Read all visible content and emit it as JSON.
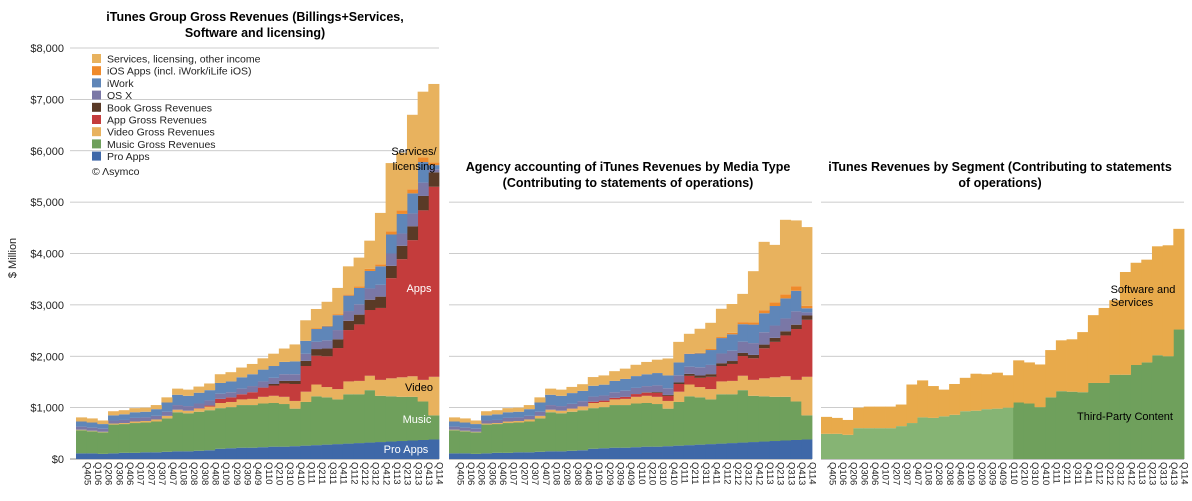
{
  "x_categories": [
    "Q405",
    "Q106",
    "Q206",
    "Q306",
    "Q406",
    "Q107",
    "Q207",
    "Q307",
    "Q407",
    "Q108",
    "Q208",
    "Q308",
    "Q408",
    "Q109",
    "Q209",
    "Q309",
    "Q409",
    "Q110",
    "Q210",
    "Q310",
    "Q410",
    "Q111",
    "Q211",
    "Q311",
    "Q411",
    "Q112",
    "Q212",
    "Q312",
    "Q412",
    "Q113",
    "Q213",
    "Q313",
    "Q413",
    "Q114"
  ],
  "colors": {
    "services": "#e8b25e",
    "ios_apps": "#ef8a2b",
    "iwork": "#5f86b8",
    "osx": "#7a77a6",
    "book": "#5a3a26",
    "app": "#c43c3c",
    "video": "#e8b25e",
    "music": "#6fa05c",
    "pro": "#3f68a8",
    "tpc": "#6fa05c",
    "software_services": "#e8aa4b"
  },
  "chart_data": [
    {
      "type": "area",
      "title": "iTunes Group Gross Revenues (Billings+Services, Software and licensing)",
      "ylabel": "$ Million",
      "ylim": [
        0,
        8000
      ],
      "yticks": [
        "$0",
        "$1,000",
        "$2,000",
        "$3,000",
        "$4,000",
        "$5,000",
        "$6,000",
        "$7,000",
        "$8,000"
      ],
      "grid": true,
      "legend_position": "top-left",
      "credit": "© Λsymco",
      "annotations": [
        "Services/",
        "licensing",
        "Apps",
        "Video",
        "Music",
        "Pro Apps"
      ],
      "series": [
        {
          "name": "Pro Apps",
          "key": "pro",
          "values": [
            110,
            110,
            100,
            110,
            120,
            120,
            130,
            130,
            140,
            150,
            150,
            160,
            170,
            200,
            210,
            220,
            220,
            230,
            240,
            240,
            250,
            260,
            270,
            280,
            290,
            300,
            310,
            320,
            330,
            340,
            350,
            360,
            370,
            380
          ]
        },
        {
          "name": "Music Gross Revenues",
          "key": "music",
          "values": [
            450,
            430,
            420,
            560,
            560,
            580,
            580,
            600,
            650,
            760,
            740,
            760,
            780,
            790,
            800,
            830,
            830,
            850,
            850,
            830,
            730,
            850,
            950,
            920,
            870,
            960,
            950,
            1020,
            900,
            880,
            860,
            850,
            750,
            470
          ]
        },
        {
          "name": "Video Gross Revenues",
          "key": "video",
          "values": [
            10,
            10,
            10,
            20,
            20,
            30,
            30,
            40,
            50,
            50,
            50,
            60,
            70,
            100,
            100,
            110,
            120,
            130,
            140,
            140,
            150,
            200,
            230,
            200,
            200,
            250,
            260,
            280,
            310,
            350,
            380,
            400,
            420,
            750
          ]
        },
        {
          "name": "App Gross Revenues",
          "key": "app",
          "values": [
            0,
            0,
            0,
            0,
            0,
            0,
            0,
            0,
            0,
            0,
            0,
            10,
            20,
            80,
            90,
            100,
            130,
            180,
            200,
            260,
            330,
            500,
            560,
            600,
            800,
            1000,
            1100,
            1280,
            1400,
            1950,
            2300,
            2650,
            3300,
            3700
          ]
        },
        {
          "name": "Book Gross Revenues",
          "key": "book",
          "values": [
            0,
            0,
            0,
            0,
            0,
            0,
            0,
            0,
            0,
            0,
            0,
            0,
            0,
            0,
            0,
            0,
            0,
            0,
            30,
            50,
            60,
            100,
            130,
            150,
            170,
            180,
            190,
            200,
            220,
            240,
            260,
            270,
            280,
            280
          ]
        },
        {
          "name": "OS X",
          "key": "osx",
          "values": [
            60,
            60,
            60,
            60,
            60,
            70,
            70,
            70,
            80,
            90,
            90,
            90,
            100,
            100,
            100,
            110,
            120,
            120,
            120,
            130,
            130,
            140,
            140,
            160,
            180,
            190,
            200,
            220,
            230,
            240,
            240,
            250,
            260,
            60
          ]
        },
        {
          "name": "iWork",
          "key": "iwork",
          "values": [
            100,
            100,
            90,
            100,
            110,
            110,
            110,
            130,
            180,
            200,
            200,
            210,
            200,
            210,
            210,
            220,
            230,
            230,
            230,
            240,
            250,
            250,
            250,
            270,
            290,
            300,
            320,
            340,
            360,
            370,
            380,
            390,
            400,
            80
          ]
        },
        {
          "name": "iOS Apps (incl. iWork/iLife iOS)",
          "key": "ios_apps",
          "values": [
            0,
            0,
            0,
            0,
            0,
            0,
            0,
            0,
            0,
            0,
            0,
            0,
            0,
            0,
            0,
            0,
            0,
            0,
            0,
            0,
            0,
            0,
            10,
            10,
            20,
            20,
            30,
            40,
            40,
            60,
            70,
            80,
            90,
            50
          ]
        },
        {
          "name": "Services, licensing, other income",
          "key": "services",
          "values": [
            80,
            80,
            70,
            80,
            80,
            80,
            80,
            80,
            100,
            120,
            120,
            120,
            130,
            170,
            180,
            190,
            200,
            220,
            240,
            260,
            330,
            400,
            380,
            470,
            510,
            550,
            560,
            550,
            1000,
            1330,
            1120,
            1450,
            1280,
            1530
          ]
        }
      ]
    },
    {
      "type": "area",
      "title": "Agency accounting of iTunes Revenues by Media Type (Contributing to statements of operations)",
      "ylim": [
        0,
        8000
      ],
      "grid": true,
      "series": [
        {
          "name": "Pro Apps",
          "key": "pro",
          "values": [
            110,
            110,
            100,
            110,
            120,
            120,
            130,
            130,
            140,
            150,
            150,
            160,
            170,
            200,
            210,
            220,
            220,
            230,
            240,
            240,
            250,
            260,
            270,
            280,
            290,
            300,
            310,
            320,
            330,
            340,
            350,
            360,
            370,
            380
          ]
        },
        {
          "name": "Music",
          "key": "music",
          "values": [
            450,
            430,
            420,
            560,
            560,
            580,
            580,
            600,
            650,
            760,
            740,
            760,
            780,
            790,
            800,
            830,
            830,
            850,
            850,
            830,
            730,
            850,
            950,
            920,
            870,
            960,
            950,
            1020,
            900,
            880,
            860,
            850,
            750,
            470
          ]
        },
        {
          "name": "Video",
          "key": "video",
          "values": [
            10,
            10,
            10,
            20,
            20,
            30,
            30,
            40,
            50,
            50,
            50,
            60,
            70,
            100,
            100,
            110,
            120,
            130,
            140,
            140,
            150,
            200,
            230,
            200,
            200,
            250,
            260,
            280,
            310,
            350,
            380,
            400,
            420,
            750
          ]
        },
        {
          "name": "Apps",
          "key": "app",
          "values": [
            0,
            0,
            0,
            0,
            0,
            0,
            0,
            0,
            0,
            0,
            0,
            3,
            6,
            25,
            27,
            30,
            39,
            54,
            60,
            78,
            99,
            150,
            168,
            180,
            240,
            300,
            330,
            384,
            420,
            585,
            690,
            795,
            990,
            1110
          ]
        },
        {
          "name": "Books",
          "key": "book",
          "values": [
            0,
            0,
            0,
            0,
            0,
            0,
            0,
            0,
            0,
            0,
            0,
            0,
            0,
            0,
            0,
            0,
            0,
            0,
            9,
            15,
            18,
            30,
            39,
            45,
            51,
            54,
            57,
            60,
            66,
            72,
            78,
            81,
            84,
            84
          ]
        },
        {
          "name": "OS X",
          "key": "osx",
          "values": [
            60,
            60,
            60,
            60,
            60,
            70,
            70,
            70,
            80,
            90,
            90,
            90,
            100,
            100,
            100,
            110,
            120,
            120,
            120,
            130,
            130,
            140,
            140,
            160,
            180,
            190,
            200,
            220,
            230,
            240,
            240,
            250,
            260,
            60
          ]
        },
        {
          "name": "iWork",
          "key": "iwork",
          "values": [
            100,
            100,
            90,
            100,
            110,
            110,
            110,
            130,
            180,
            200,
            200,
            210,
            200,
            210,
            210,
            220,
            230,
            230,
            230,
            240,
            250,
            250,
            250,
            270,
            290,
            300,
            320,
            340,
            360,
            370,
            380,
            390,
            400,
            80
          ]
        },
        {
          "name": "iOS Apps",
          "key": "ios_apps",
          "values": [
            0,
            0,
            0,
            0,
            0,
            0,
            0,
            0,
            0,
            0,
            0,
            0,
            0,
            0,
            0,
            0,
            0,
            0,
            0,
            0,
            0,
            0,
            10,
            10,
            20,
            20,
            30,
            40,
            40,
            60,
            70,
            80,
            90,
            50
          ]
        },
        {
          "name": "Services",
          "key": "services",
          "values": [
            80,
            80,
            70,
            80,
            80,
            80,
            80,
            80,
            100,
            120,
            120,
            120,
            130,
            170,
            180,
            190,
            200,
            220,
            240,
            260,
            330,
            400,
            380,
            470,
            510,
            550,
            560,
            550,
            1000,
            1330,
            1120,
            1450,
            1280,
            1530
          ]
        }
      ]
    },
    {
      "type": "area",
      "title": "iTunes Revenues by Segment (Contributing to statements of operations)",
      "ylim": [
        0,
        8000
      ],
      "grid": true,
      "annotations": [
        "Software and",
        "Services",
        "Third-Party Content"
      ],
      "series": [
        {
          "name": "Third-Party Content",
          "key": "tpc",
          "values": [
            490,
            490,
            470,
            600,
            600,
            600,
            600,
            640,
            700,
            810,
            800,
            830,
            860,
            930,
            940,
            970,
            980,
            1000,
            1100,
            1080,
            1010,
            1200,
            1320,
            1310,
            1300,
            1480,
            1480,
            1640,
            1640,
            1830,
            1880,
            2020,
            2000,
            2520
          ]
        },
        {
          "name": "Software and Services",
          "key": "software_services",
          "values": [
            330,
            310,
            290,
            400,
            420,
            420,
            420,
            420,
            750,
            720,
            620,
            520,
            600,
            650,
            720,
            680,
            700,
            630,
            820,
            800,
            830,
            920,
            990,
            1020,
            1170,
            1320,
            1460,
            1450,
            2000,
            1990,
            2000,
            2120,
            2160,
            1960
          ]
        }
      ]
    }
  ]
}
